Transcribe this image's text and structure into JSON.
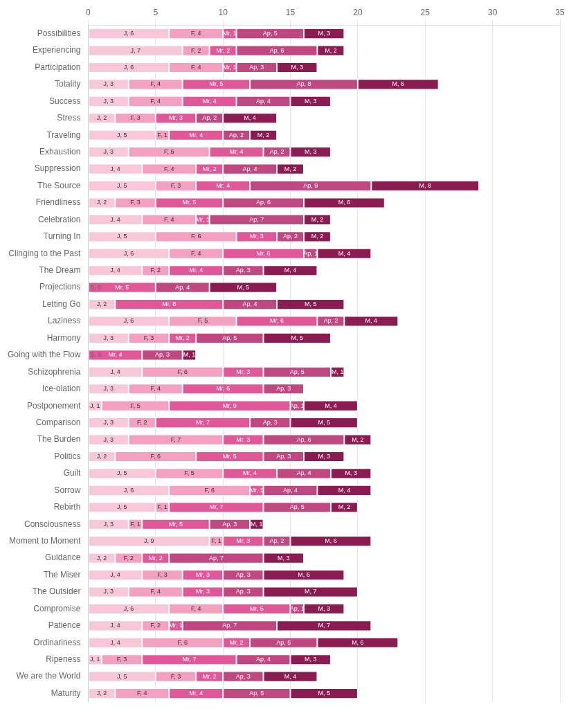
{
  "chart_data": {
    "type": "bar",
    "orientation": "horizontal",
    "stacked": true,
    "categories": [
      "Possibilities",
      "Experiencing",
      "Participation",
      "Totality",
      "Success",
      "Stress",
      "Traveling",
      "Exhaustion",
      "Suppression",
      "The Source",
      "Friendliness",
      "Celebration",
      "Turning In",
      "Clinging to the Past",
      "The Dream",
      "Projections",
      "Letting Go",
      "Laziness",
      "Harmony",
      "Going with the Flow",
      "Schizophrenia",
      "Ice-olation",
      "Postponement",
      "Comparison",
      "The Burden",
      "Politics",
      "Guilt",
      "Sorrow",
      "Rebirth",
      "Consciousness",
      "Moment to Moment",
      "Guidance",
      "The Miser",
      "The Outsider",
      "Compromise",
      "Patience",
      "Ordinariness",
      "Ripeness",
      "We are the World",
      "Maturity"
    ],
    "series": [
      {
        "name": "J",
        "color": "#f8c8d8",
        "values": [
          6,
          7,
          6,
          3,
          3,
          2,
          5,
          3,
          4,
          5,
          2,
          4,
          5,
          6,
          4,
          0,
          2,
          6,
          3,
          0,
          4,
          3,
          1,
          3,
          3,
          2,
          5,
          6,
          5,
          3,
          9,
          2,
          4,
          3,
          6,
          4,
          4,
          1,
          5,
          2
        ],
        "value_labels": [
          "J, 6",
          "J, 7",
          "J, 6",
          "J, 3",
          "J, 3",
          "J, 2",
          "J, 5",
          "J, 3",
          "J, 4",
          "J, 5",
          "J, 2",
          "J, 4",
          "J, 5",
          "J, 6",
          "J, 4",
          null,
          "J, 2",
          "J, 6",
          "J, 3",
          null,
          "J, 4",
          "J, 3",
          "J, 1",
          "J, 3",
          "J, 3",
          "J, 2",
          "J, 5",
          "J, 6",
          "J, 5",
          "J, 3",
          "J, 9",
          "J, 2",
          "J, 4",
          "J, 3",
          "J, 6",
          "J, 4",
          "J, 4",
          "J, 1",
          "J, 5",
          "J, 2"
        ]
      },
      {
        "name": "F",
        "color": "#f4a0c0",
        "values": [
          4,
          2,
          4,
          4,
          4,
          3,
          1,
          6,
          4,
          3,
          3,
          4,
          6,
          4,
          2,
          0,
          0,
          5,
          3,
          0,
          6,
          4,
          5,
          2,
          7,
          6,
          5,
          6,
          1,
          1,
          1,
          2,
          3,
          4,
          4,
          2,
          6,
          3,
          3,
          4
        ],
        "value_labels": [
          "F, 4",
          "F, 2",
          "F, 4",
          "F, 4",
          "F, 4",
          "F, 3",
          "F, 1",
          "F, 6",
          "F, 4",
          "F, 3",
          "F, 3",
          "F, 4",
          "F, 6",
          "F, 4",
          "F, 2",
          null,
          null,
          "F, 5",
          "F, 3",
          null,
          "F, 6",
          "F, 4",
          "F, 5",
          "F, 2",
          "F, 7",
          "F, 6",
          "F, 5",
          "F, 6",
          "F, 1",
          "F, 1",
          "F, 1",
          "F, 2",
          "F, 3",
          "F, 4",
          "F, 4",
          "F, 2",
          "F, 6",
          "F, 3",
          "F, 3",
          "F, 4"
        ]
      },
      {
        "name": "Mr",
        "color": "#e05898",
        "values": [
          1,
          2,
          1,
          5,
          4,
          3,
          4,
          4,
          2,
          4,
          5,
          1,
          3,
          6,
          4,
          5,
          8,
          6,
          2,
          4,
          3,
          6,
          9,
          7,
          3,
          5,
          4,
          1,
          7,
          5,
          3,
          2,
          3,
          3,
          5,
          1,
          2,
          7,
          2,
          4
        ],
        "value_labels": [
          "Mr, 1",
          "Mr, 2",
          "Mr, 1",
          "Mr, 5",
          "Mr, 4",
          "Mr, 3",
          "Mr, 4",
          "Mr, 4",
          "Mr, 2",
          "Mr, 4",
          "Mr, 5",
          "Mr, 1",
          "Mr, 3",
          "Mr, 6",
          "Mr, 4",
          "Mr, 5",
          "Mr, 8",
          "Mr, 6",
          "Mr, 2",
          "Mr, 4",
          "Mr, 3",
          "Mr, 6",
          "Mr, 9",
          "Mr, 7",
          "Mr, 3",
          "Mr, 5",
          "Mr, 4",
          "Mr, 1",
          "Mr, 7",
          "Mr, 5",
          "Mr, 3",
          "Mr, 2",
          "Mr, 3",
          "Mr, 3",
          "Mr, 5",
          "Mr, 1",
          "Mr, 2",
          "Mr, 7",
          "Mr, 2",
          "Mr, 4"
        ]
      },
      {
        "name": "Ap",
        "color": "#c04880",
        "values": [
          5,
          6,
          3,
          8,
          4,
          2,
          2,
          2,
          4,
          9,
          6,
          7,
          2,
          1,
          3,
          4,
          4,
          2,
          5,
          3,
          5,
          3,
          1,
          3,
          6,
          3,
          4,
          4,
          5,
          3,
          2,
          7,
          3,
          3,
          1,
          7,
          5,
          4,
          3,
          5
        ],
        "value_labels": [
          "Ap, 5",
          "Ap, 6",
          "Ap, 3",
          "Ap, 8",
          "Ap, 4",
          "Ap, 2",
          "Ap, 2",
          "Ap, 2",
          "Ap, 4",
          "Ap, 9",
          "Ap, 6",
          "Ap, 7",
          "Ap, 2",
          "Ap, 1",
          "Ap, 3",
          "Ap, 4",
          "Ap, 4",
          "Ap, 2",
          "Ap, 5",
          "Ap, 3",
          "Ap, 5",
          "Ap, 3",
          "Ap, 1",
          "Ap, 3",
          "Ap, 6",
          "Ap, 3",
          "Ap, 4",
          "Ap, 4",
          "Ap, 5",
          "Ap, 3",
          "Ap, 2",
          "Ap, 7",
          "Ap, 3",
          "Ap, 3",
          "Ap, 1",
          "Ap, 7",
          "Ap, 5",
          "Ap, 4",
          "Ap, 3",
          "Ap, 5"
        ]
      },
      {
        "name": "M",
        "color": "#8b1c52",
        "values": [
          3,
          2,
          3,
          6,
          3,
          4,
          2,
          3,
          2,
          8,
          6,
          2,
          2,
          4,
          4,
          5,
          5,
          4,
          5,
          1,
          1,
          0,
          4,
          5,
          2,
          3,
          3,
          4,
          2,
          1,
          6,
          3,
          6,
          7,
          3,
          7,
          6,
          3,
          4,
          5
        ],
        "value_labels": [
          "M, 3",
          "M, 2",
          "M, 3",
          "M, 6",
          "M, 3",
          "M, 4",
          "M, 2",
          "M, 3",
          "M, 2",
          "M, 8",
          "M, 6",
          "M, 2",
          "M, 2",
          "M, 4",
          "M, 4",
          "M, 5",
          "M, 5",
          "M, 4",
          "M, 5",
          "M, 1",
          "M, 1",
          null,
          "M, 4",
          "M, 5",
          "M, 2",
          "M, 3",
          "M, 3",
          "M, 4",
          "M, 2",
          "M, 1",
          "M, 6",
          "M, 3",
          "M, 6",
          "M, 7",
          "M, 3",
          "M, 7",
          "M, 6",
          "M, 3",
          "M, 4",
          "M, 5"
        ]
      }
    ],
    "xlim": [
      0,
      35
    ],
    "xticks": [
      0,
      5,
      10,
      15,
      20,
      25,
      30,
      35
    ],
    "grid": true,
    "data_labels": true,
    "annotations": [
      {
        "text": "B, 0",
        "category": "Projections",
        "x": 0.15
      },
      {
        "text": "B, 0",
        "category": "Going with the Flow",
        "x": 0.15
      }
    ]
  }
}
